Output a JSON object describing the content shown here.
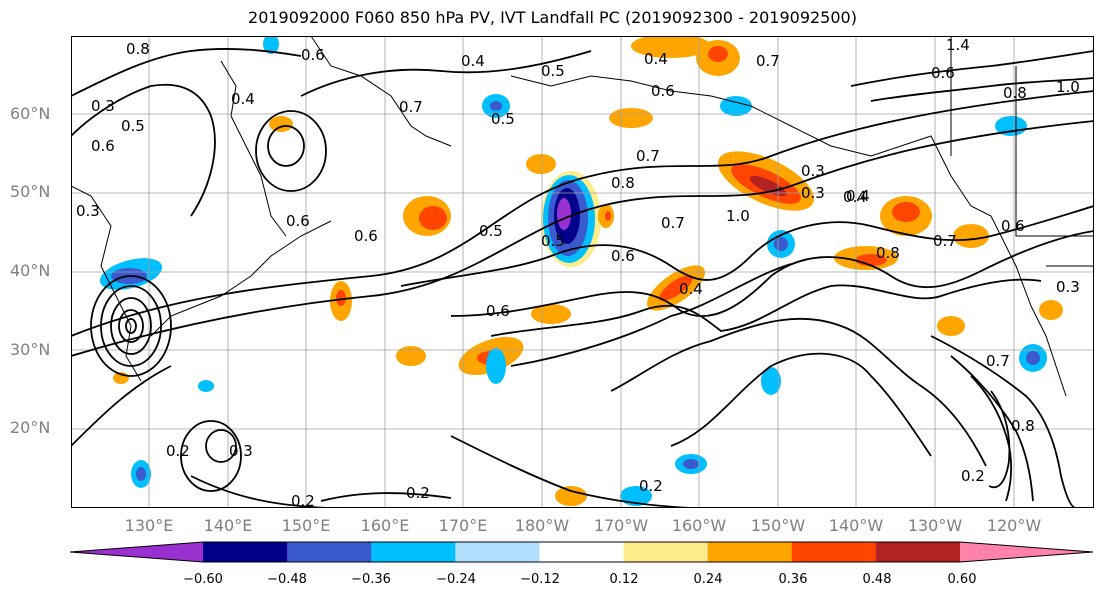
{
  "title": "2019092000 F060 850 hPa PV, IVT Landfall PC (2019092300 - 2019092500)",
  "lat_labels": [
    "60°N",
    "50°N",
    "40°N",
    "30°N",
    "20°N"
  ],
  "lon_labels": [
    "130°E",
    "140°E",
    "150°E",
    "160°E",
    "170°E",
    "180°W",
    "170°W",
    "160°W",
    "150°W",
    "140°W",
    "130°W",
    "120°W"
  ],
  "colorbar": {
    "colors": [
      "#9b30d0",
      "#00008b",
      "#3a5acd",
      "#00bfff",
      "#b0e2ff",
      "#ffffff",
      "#ffec8b",
      "#ffa500",
      "#ff4500",
      "#b22222",
      "#ff82ab"
    ],
    "tick_labels": [
      "−0.60",
      "−0.48",
      "−0.36",
      "−0.24",
      "−0.12",
      "0.12",
      "0.24",
      "0.36",
      "0.48",
      "0.60"
    ]
  },
  "contour_labels": [
    "0.8",
    "0.6",
    "0.4",
    "0.5",
    "0.4",
    "0.7",
    "1.4",
    "0.6",
    "0.8",
    "1.0",
    "0.6",
    "0.4",
    "0.7",
    "0.5",
    "0.3",
    "0.3",
    "0.3",
    "0.4",
    "0.6",
    "0.6",
    "0.6",
    "0.5",
    "0.5",
    "0.7",
    "0.8",
    "0.3",
    "0.4",
    "0.6",
    "0.7",
    "1.0",
    "0.6",
    "0.8",
    "0.7",
    "0.4",
    "0.6",
    "0.5",
    "0.3",
    "0.2",
    "0.3",
    "0.2",
    "0.2",
    "0.2",
    "0.7",
    "0.8",
    "0.2"
  ]
}
